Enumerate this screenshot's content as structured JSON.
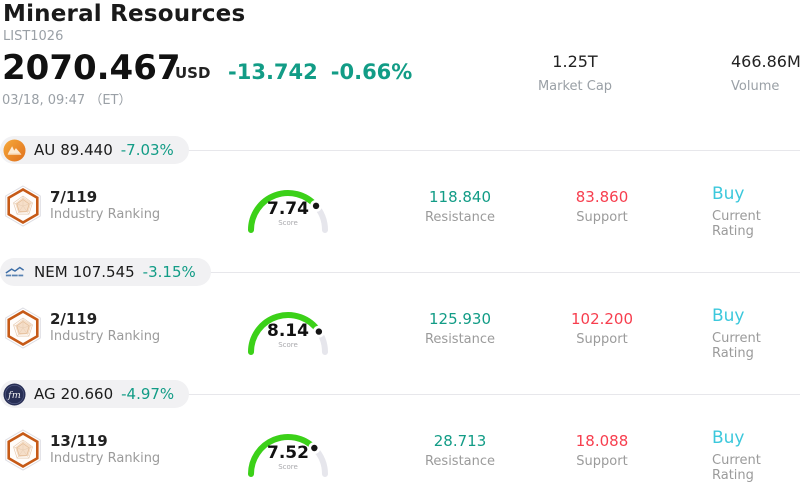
{
  "header": {
    "title": "Mineral Resources",
    "list_id": "LIST1026",
    "price": "2070.467",
    "currency": "USD",
    "change": "-13.742",
    "change_pct": "-0.66%",
    "timestamp": "03/18, 09:47 （ET）",
    "market_cap": {
      "value": "1.25T",
      "label": "Market Cap"
    },
    "volume": {
      "value": "466.86M",
      "label": "Volume"
    }
  },
  "labels": {
    "industry_ranking": "Industry Ranking",
    "score": "Score",
    "resistance": "Resistance",
    "support": "Support",
    "current_rating": "Current Rating"
  },
  "colors": {
    "teal": "#129c86",
    "red": "#f73e4e",
    "buy_cyan": "#3cc8dc",
    "gauge_green": "#3bd118",
    "gauge_track": "#e6e6ec",
    "gray": "#9aa0a6",
    "gray2": "#9b9b9b",
    "pill": "#f1f1f3",
    "divider": "#e7e7eb",
    "badge_orange": "#c65a17",
    "au_orange": "#e8821f",
    "nem_blue": "#3c6da6",
    "ag_navy": "#272e55"
  },
  "rows": [
    {
      "symbol": "AU",
      "price": "89.440",
      "change_pct": "-7.03%",
      "ranking": "7/119",
      "score": 7.74,
      "resistance": "118.840",
      "support": "83.860",
      "rating": "Buy"
    },
    {
      "symbol": "NEM",
      "price": "107.545",
      "change_pct": "-3.15%",
      "ranking": "2/119",
      "score": 8.14,
      "resistance": "125.930",
      "support": "102.200",
      "rating": "Buy"
    },
    {
      "symbol": "AG",
      "price": "20.660",
      "change_pct": "-4.97%",
      "ranking": "13/119",
      "score": 7.52,
      "resistance": "28.713",
      "support": "18.088",
      "rating": "Buy"
    }
  ]
}
